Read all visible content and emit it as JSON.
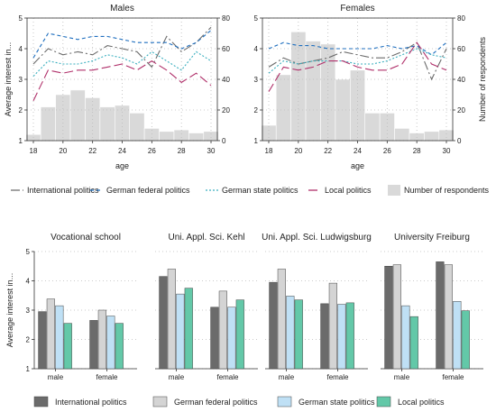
{
  "chart_data": [
    {
      "type": "line",
      "title": "Males",
      "xlabel": "age",
      "ylabel": "Average interest in...",
      "y2label": "",
      "x": [
        18,
        19,
        20,
        21,
        22,
        23,
        24,
        25,
        26,
        27,
        28,
        29,
        30
      ],
      "xticks": [
        "18",
        "20",
        "22",
        "24",
        "26",
        "28",
        "30"
      ],
      "ylim": [
        1,
        5
      ],
      "yticks": [
        "1",
        "2",
        "3",
        "4",
        "5"
      ],
      "y2lim": [
        0,
        80
      ],
      "y2ticks": [
        "0",
        "20",
        "40",
        "60",
        "80"
      ],
      "series": [
        {
          "name": "International politics",
          "values": [
            3.5,
            4.0,
            3.8,
            3.9,
            3.8,
            4.1,
            4.0,
            3.9,
            3.4,
            4.4,
            3.9,
            4.2,
            4.7
          ]
        },
        {
          "name": "German federal politics",
          "values": [
            3.7,
            4.5,
            4.4,
            4.3,
            4.4,
            4.4,
            4.3,
            4.2,
            4.2,
            4.2,
            4.0,
            4.2,
            4.6
          ]
        },
        {
          "name": "German state politics",
          "values": [
            3.1,
            3.6,
            3.5,
            3.5,
            3.6,
            3.8,
            3.7,
            3.5,
            3.9,
            3.6,
            3.3,
            3.9,
            3.6
          ]
        },
        {
          "name": "Local politics",
          "values": [
            2.3,
            3.3,
            3.2,
            3.3,
            3.3,
            3.4,
            3.5,
            3.3,
            3.6,
            3.3,
            2.9,
            3.2,
            2.8
          ]
        }
      ],
      "bars": {
        "name": "Number of respondents",
        "values": [
          4,
          22,
          30,
          33,
          28,
          22,
          23,
          18,
          8,
          6,
          7,
          5,
          6
        ]
      }
    },
    {
      "type": "line",
      "title": "Females",
      "xlabel": "age",
      "ylabel": "",
      "y2label": "Number of respondents",
      "x": [
        18,
        19,
        20,
        21,
        22,
        23,
        24,
        25,
        26,
        27,
        28,
        29,
        30
      ],
      "xticks": [
        "18",
        "20",
        "22",
        "24",
        "26",
        "28",
        "30"
      ],
      "ylim": [
        1,
        5
      ],
      "yticks": [
        "1",
        "2",
        "3",
        "4",
        "5"
      ],
      "y2lim": [
        0,
        80
      ],
      "y2ticks": [
        "0",
        "20",
        "40",
        "60",
        "80"
      ],
      "series": [
        {
          "name": "International politics",
          "values": [
            3.4,
            3.7,
            3.5,
            3.6,
            3.7,
            3.9,
            3.8,
            3.7,
            3.7,
            3.9,
            4.2,
            3.0,
            4.0
          ]
        },
        {
          "name": "German federal politics",
          "values": [
            4.0,
            4.2,
            4.1,
            4.1,
            4.0,
            4.0,
            4.0,
            4.0,
            4.1,
            4.0,
            4.1,
            3.8,
            4.2
          ]
        },
        {
          "name": "German state politics",
          "values": [
            3.2,
            3.6,
            3.5,
            3.6,
            3.6,
            3.6,
            3.5,
            3.5,
            3.6,
            3.8,
            4.0,
            3.8,
            3.7
          ]
        },
        {
          "name": "Local politics",
          "values": [
            2.6,
            3.4,
            3.3,
            3.4,
            3.6,
            3.6,
            3.4,
            3.3,
            3.3,
            3.5,
            4.2,
            3.5,
            3.3
          ]
        }
      ],
      "bars": {
        "name": "Number of respondents",
        "values": [
          10,
          43,
          71,
          65,
          63,
          40,
          46,
          18,
          18,
          8,
          5,
          6,
          7
        ]
      }
    },
    {
      "type": "bar",
      "ylabel": "Average interest in...",
      "ylim": [
        1,
        5
      ],
      "yticks": [
        "1",
        "2",
        "3",
        "4",
        "5"
      ],
      "groups": [
        "male",
        "female"
      ],
      "series_names": [
        "International politics",
        "German federal politics",
        "German state politics",
        "Local politics"
      ],
      "panels": [
        {
          "title": "Vocational school",
          "values": {
            "male": [
              2.95,
              3.38,
              3.15,
              2.55
            ],
            "female": [
              2.65,
              3.0,
              2.8,
              2.55
            ]
          }
        },
        {
          "title": "Uni. Appl. Sci. Kehl",
          "values": {
            "male": [
              4.15,
              4.4,
              3.55,
              3.75
            ],
            "female": [
              3.1,
              3.65,
              3.1,
              3.35
            ]
          }
        },
        {
          "title": "Uni. Appl. Sci. Ludwigsburg",
          "values": {
            "male": [
              3.95,
              4.4,
              3.48,
              3.35
            ],
            "female": [
              3.22,
              3.92,
              3.2,
              3.25
            ]
          }
        },
        {
          "title": "University Freiburg",
          "values": {
            "male": [
              4.5,
              4.55,
              3.15,
              2.78
            ],
            "female": [
              4.65,
              4.55,
              3.3,
              2.98
            ]
          }
        }
      ]
    }
  ],
  "legend_top": [
    {
      "label": "International politics",
      "kind": "line",
      "color": "#6b6b6b",
      "dash": "10,3,2,3"
    },
    {
      "label": "German federal politics",
      "kind": "line",
      "color": "#1f6fbf",
      "dash": "4,3"
    },
    {
      "label": "German state politics",
      "kind": "line",
      "color": "#3aafbf",
      "dash": "2,2"
    },
    {
      "label": "Local politics",
      "kind": "line",
      "color": "#b0306a",
      "dash": "10,4"
    },
    {
      "label": "Number of respondents",
      "kind": "box",
      "color": "#d9d9d9"
    }
  ],
  "legend_bottom": [
    {
      "label": "International politics",
      "color": "#6b6b6b"
    },
    {
      "label": "German federal politics",
      "color": "#d4d4d4"
    },
    {
      "label": "German state politics",
      "color": "#bfe0f5"
    },
    {
      "label": "Local politics",
      "color": "#63c8a8"
    }
  ],
  "colors": {
    "international": "#6b6b6b",
    "federal": "#1f6fbf",
    "state": "#3aafbf",
    "local": "#b0306a",
    "respondents": "#d9d9d9",
    "bar_international": "#6b6b6b",
    "bar_federal": "#d4d4d4",
    "bar_state": "#bfe0f5",
    "bar_local": "#63c8a8"
  }
}
